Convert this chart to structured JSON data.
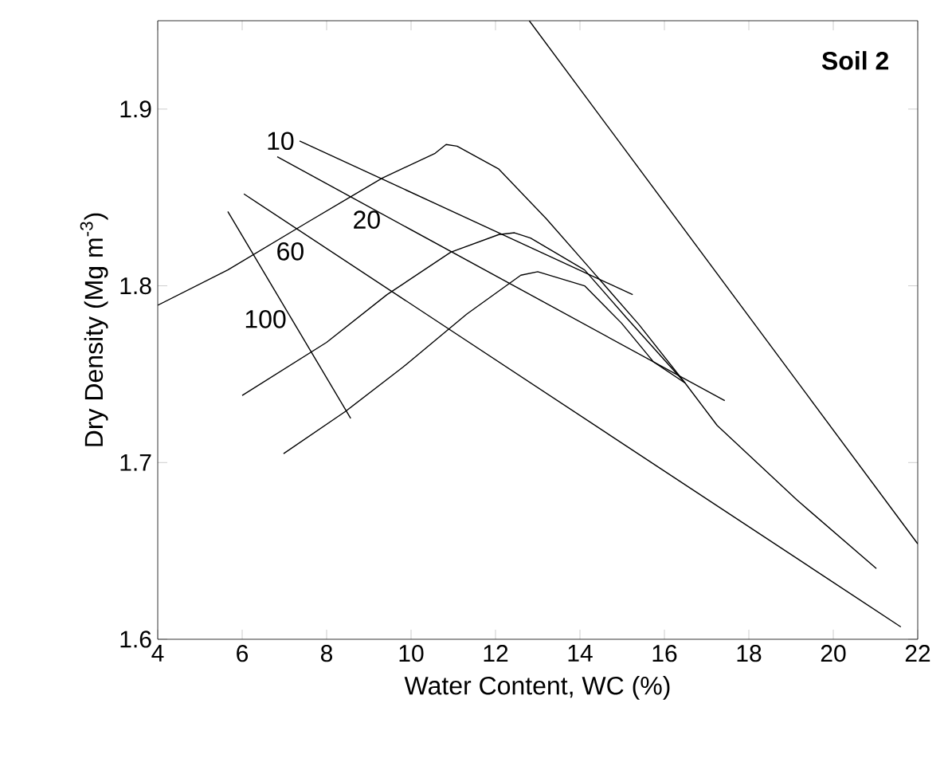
{
  "chart_data": {
    "type": "line",
    "xlabel": "Water Content, WC (%)",
    "ylabel": "Dry Density (Mg m$^{-3}$)",
    "xlim": [
      4,
      22
    ],
    "ylim": [
      1.6,
      1.95
    ],
    "xticks": [
      4,
      6,
      8,
      10,
      12,
      14,
      16,
      18,
      20,
      22
    ],
    "yticks": [
      1.6,
      1.7,
      1.8,
      1.9
    ],
    "grid": false,
    "marker": "none",
    "line_style": "solid",
    "series": [
      {
        "color": "#000000",
        "x": [
          4,
          5.66,
          7.55,
          9.32,
          10.57,
          10.83,
          11.09,
          12.08,
          13.2,
          14.23,
          15.4,
          16.49,
          17.25,
          19.13,
          21.02
        ],
        "values": [
          1.789,
          1.809,
          1.836,
          1.861,
          1.875,
          1.88,
          1.879,
          1.866,
          1.838,
          1.81,
          1.778,
          1.745,
          1.721,
          1.679,
          1.64
        ]
      },
      {
        "color": "#000000",
        "x": [
          6.0,
          8.0,
          9.43,
          10.94,
          12.08,
          12.45,
          12.83,
          14.11,
          15.1,
          16.49
        ],
        "values": [
          1.738,
          1.768,
          1.795,
          1.819,
          1.829,
          1.83,
          1.827,
          1.809,
          1.782,
          1.745
        ]
      },
      {
        "color": "#000000",
        "x": [
          6.98,
          8.45,
          9.81,
          11.32,
          12.6,
          13.0,
          14.11,
          14.98,
          15.74,
          16.49
        ],
        "values": [
          1.705,
          1.729,
          1.754,
          1.784,
          1.806,
          1.808,
          1.8,
          1.779,
          1.757,
          1.745
        ]
      },
      {
        "color": "#000000",
        "x": [
          12.8,
          22
        ],
        "values": [
          1.95,
          1.654
        ]
      },
      {
        "name": "10",
        "color": "#000000",
        "x": [
          7.36,
          15.25
        ],
        "values": [
          1.882,
          1.795
        ]
      },
      {
        "name": "20",
        "color": "#000000",
        "x": [
          6.83,
          17.43
        ],
        "values": [
          1.873,
          1.735
        ]
      },
      {
        "name": "60",
        "color": "#000000",
        "x": [
          6.04,
          21.6
        ],
        "values": [
          1.852,
          1.607
        ]
      },
      {
        "name": "100",
        "color": "#000000",
        "x": [
          5.66,
          8.57
        ],
        "values": [
          1.842,
          1.725
        ]
      }
    ],
    "annotations": [
      "Soil 2"
    ]
  }
}
